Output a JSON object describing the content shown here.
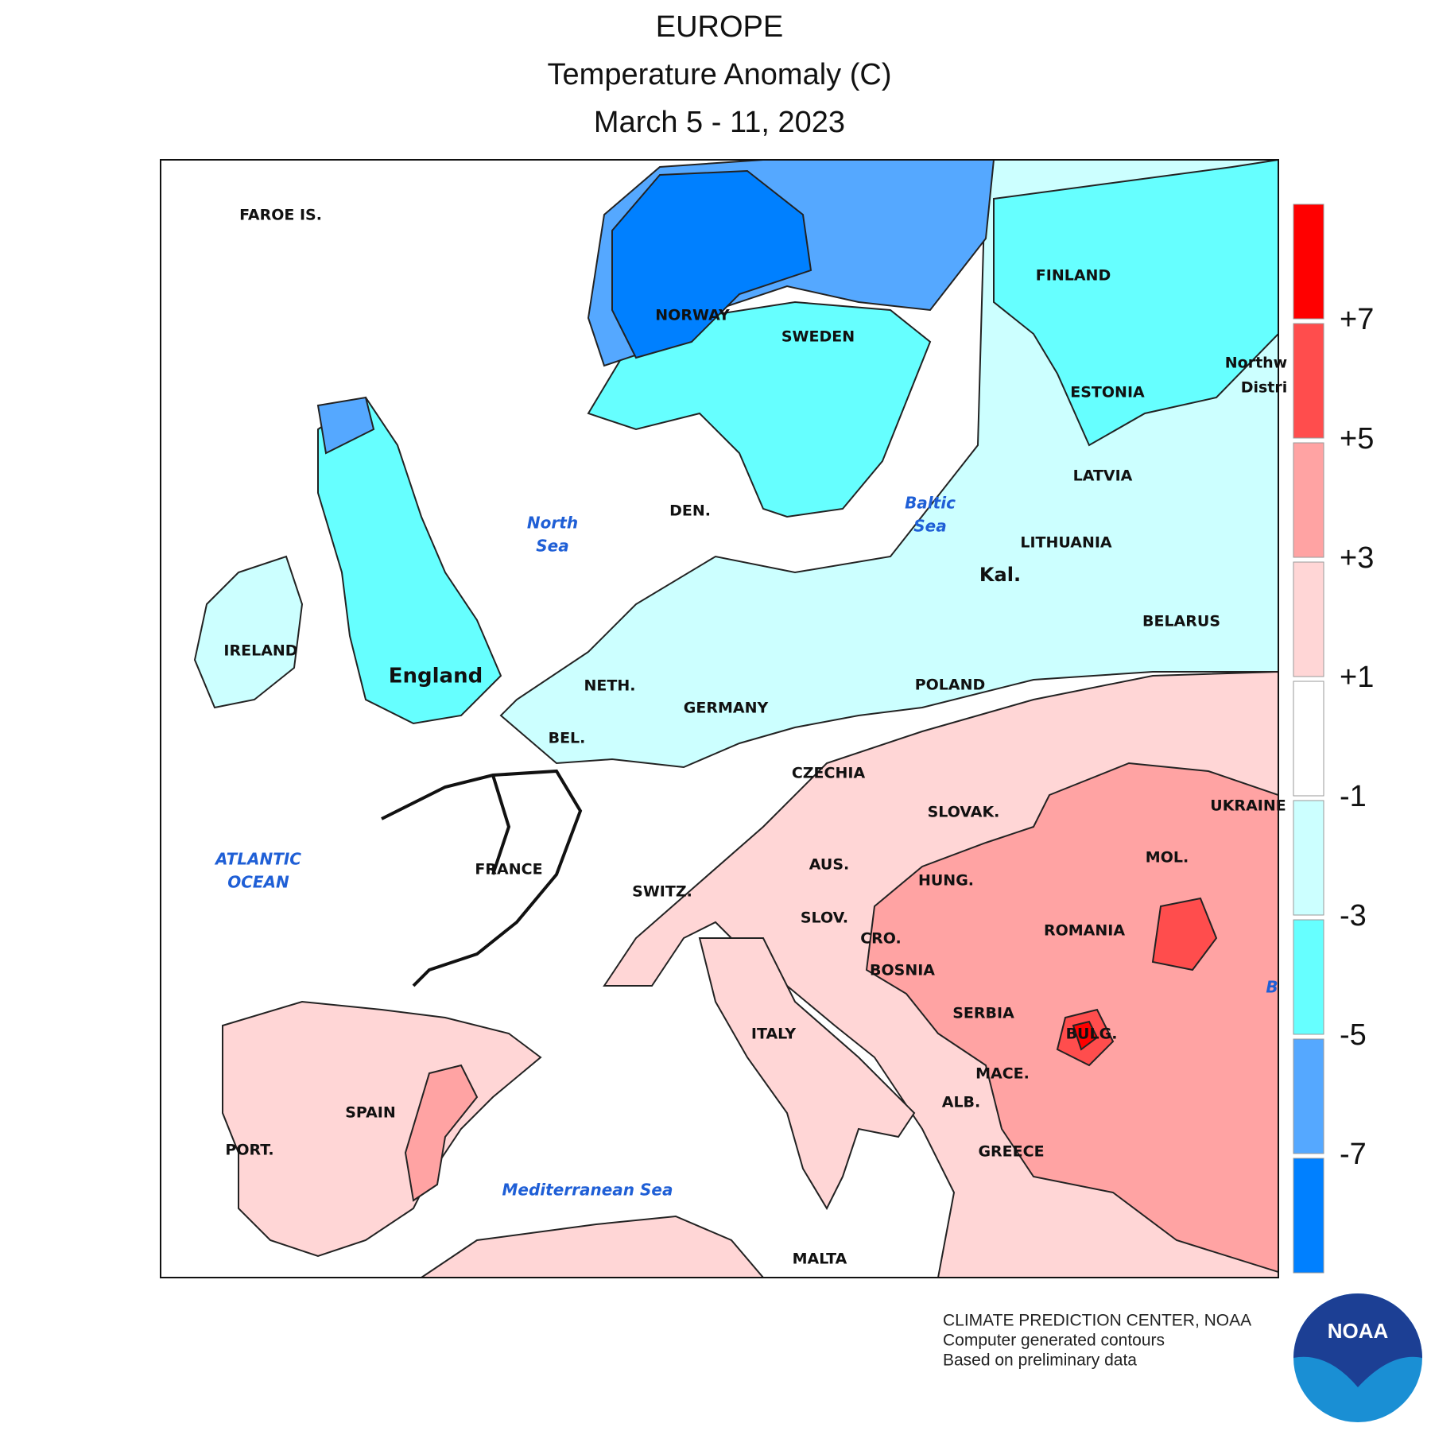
{
  "header": {
    "region": "EUROPE",
    "title": "Temperature Anomaly (C)",
    "period": "March 5 - 11, 2023"
  },
  "legend": {
    "colors": [
      "#ff0000",
      "#ff4d4d",
      "#ffa3a3",
      "#ffd6d6",
      "#ffffff",
      "#ccffff",
      "#66ffff",
      "#55a8ff",
      "#0080ff"
    ],
    "labels": [
      "+7",
      "+5",
      "+3",
      "+1",
      "-1",
      "-3",
      "-5",
      "-7"
    ]
  },
  "map_labels": [
    "FAROE IS.",
    "NORWAY",
    "SWEDEN",
    "FINLAND",
    "ESTONIA",
    "LATVIA",
    "LITHUANIA",
    "Kal.",
    "BELARUS",
    "DEN.",
    "IRELAND",
    "England",
    "NETH.",
    "GERMANY",
    "POLAND",
    "BEL.",
    "CZECHIA",
    "SLOVAK.",
    "UKRAINE",
    "FRANCE",
    "SWITZ.",
    "AUS.",
    "HUNG.",
    "MOL.",
    "SLOV.",
    "CRO.",
    "ROMANIA",
    "BOSNIA",
    "SERBIA",
    "ITALY",
    "BULG.",
    "MACE.",
    "ALB.",
    "SPAIN",
    "PORT.",
    "GREECE",
    "MALTA",
    "Northw",
    "Distri"
  ],
  "water_labels": [
    [
      "North",
      "Sea"
    ],
    [
      "Baltic",
      "Sea"
    ],
    [
      "ATLANTIC",
      "OCEAN"
    ],
    [
      "Mediterranean Sea"
    ],
    [
      "B"
    ]
  ],
  "credits": [
    "CLIMATE PREDICTION CENTER, NOAA",
    "Computer generated contours",
    "Based on preliminary data"
  ],
  "logo": "NOAA"
}
